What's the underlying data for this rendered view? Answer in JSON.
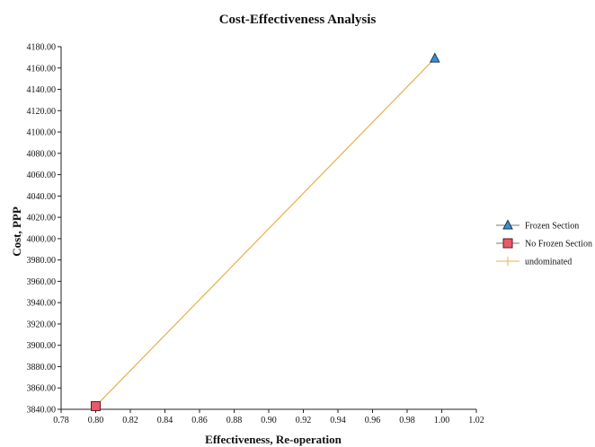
{
  "chart_data": {
    "type": "scatter",
    "title": "Cost-Effectiveness Analysis",
    "xlabel": "Effectiveness, Re-operation",
    "ylabel": "Cost, PPP",
    "xlim": [
      0.78,
      1.02
    ],
    "ylim": [
      3840,
      4180
    ],
    "xticks": [
      "0.78",
      "0.80",
      "0.82",
      "0.84",
      "0.86",
      "0.88",
      "0.90",
      "0.92",
      "0.94",
      "0.96",
      "0.98",
      "1.00",
      "1.02"
    ],
    "yticks": [
      "3840.00",
      "3860.00",
      "3880.00",
      "3900.00",
      "3920.00",
      "3940.00",
      "3960.00",
      "3980.00",
      "4000.00",
      "4020.00",
      "4040.00",
      "4060.00",
      "4080.00",
      "4100.00",
      "4120.00",
      "4140.00",
      "4160.00",
      "4180.00"
    ],
    "grid": false,
    "legend_position": "right",
    "series": [
      {
        "name": "Frozen Section",
        "marker": "triangle",
        "color": "#3a8fd0",
        "x": [
          0.996
        ],
        "y": [
          4169
        ]
      },
      {
        "name": "No Frozen Section",
        "marker": "square",
        "color": "#e85a6a",
        "x": [
          0.8
        ],
        "y": [
          3843
        ]
      },
      {
        "name": "undominated",
        "marker": "line",
        "color": "#e8b048",
        "x": [
          0.8,
          0.996
        ],
        "y": [
          3843,
          4169
        ]
      }
    ]
  }
}
